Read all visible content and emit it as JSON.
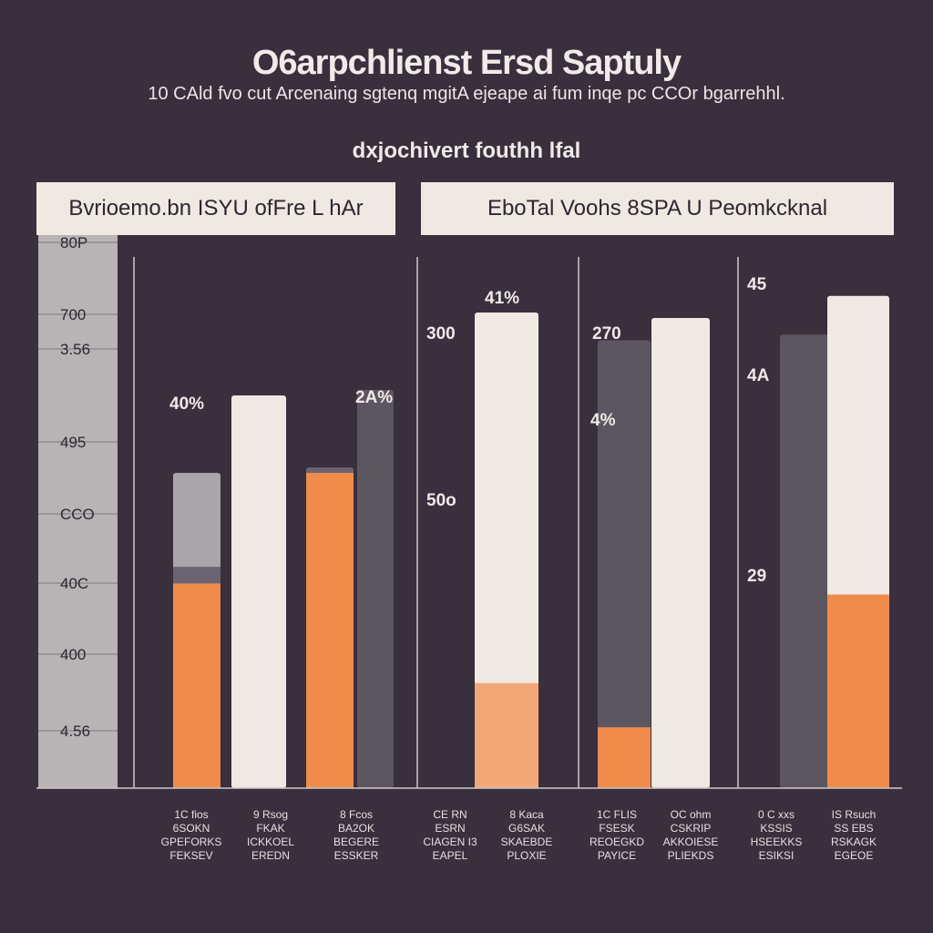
{
  "header": {
    "title": "O6arpchlienst Ersd Saptuly",
    "subtitle": "10 CAld fvo cut Arcenaing sgtenq mgitA ejeape ai fum inqe pc CCOr bgarrehhl.",
    "section": "dxjochivert fouthh lfal"
  },
  "panels": [
    {
      "title": "Bvrioemo.bn ISYU ofFre L hAr"
    },
    {
      "title": "EboTal Voohs 8SPA U Peomkcknal"
    }
  ],
  "colors": {
    "background": "#3a2f3d",
    "axis_strip": "#b8b4b6",
    "light_bar": "#efe9e4",
    "gray_bar": "#a9a6aa",
    "mid_gray_bar": "#6a6470",
    "dark_bar": "#5c5661",
    "orange_bar": "#ef8c4c",
    "peach_bar": "#f3a878"
  },
  "chart_data": {
    "type": "bar",
    "title": "O6arpchlienst Ersd Saptuly",
    "y_ticks": [
      "80P",
      "700",
      "3.56",
      "495",
      "CCO",
      "40C",
      "400",
      "4.56"
    ],
    "ylim": [
      0,
      100
    ],
    "categories": [
      [
        "1C fios",
        "6SOKN",
        "GPEFORKS",
        "FEKSEV"
      ],
      [
        "9 Rsog",
        "FKAK",
        "ICKKOEL",
        "EREDN"
      ],
      [
        "8 Fcos",
        "BA2OK",
        "BEGERE",
        "ESSKER"
      ],
      [
        "CE RN",
        "ESRN",
        "CIAGEN I3",
        "EAPEL"
      ],
      [
        "8 Kaca",
        "G6SAK",
        "SKAEBDE",
        "PLOXIE"
      ],
      [
        "1C FLIS",
        "FSESK",
        "REOEGKD",
        "PAYICE"
      ],
      [
        "OC ohm",
        "CSKRIP",
        "AKKOIESE",
        "PLIEKDS"
      ],
      [
        "0 C xxs",
        "KSSIS",
        "HSEEKKS",
        "ESIKSI"
      ],
      [
        "IS Rsuch",
        "SS EBS",
        "RSKAGK",
        "EGEOE"
      ]
    ],
    "series": [
      {
        "values": [
          [
            57,
            40,
            37
          ],
          [
            71
          ],
          [
            58,
            38,
            57
          ],
          [
            88
          ],
          [
            77
          ],
          [
            60,
            11,
            81
          ],
          [
            85
          ],
          [
            79,
            84
          ],
          [
            89,
            34
          ]
        ]
      }
    ],
    "data_labels": [
      "40%",
      "2A%",
      "41%",
      "300",
      "50o",
      "270",
      "4%",
      "45",
      "4A",
      "29"
    ]
  }
}
